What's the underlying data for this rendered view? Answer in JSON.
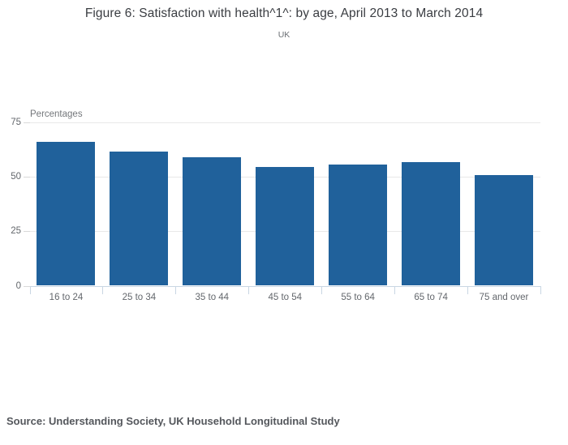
{
  "figure": {
    "title": "Figure 6: Satisfaction with health^1^: by age, April 2013 to March 2014",
    "subtitle": "UK",
    "source": "Source: Understanding Society, UK Household Longitudinal Study"
  },
  "chart_data": {
    "type": "bar",
    "title": "Figure 6: Satisfaction with health^1^: by age, April 2013 to March 2014",
    "subtitle": "UK",
    "categories": [
      "16 to 24",
      "25 to 34",
      "35 to 44",
      "45 to 54",
      "55 to 64",
      "65 to 74",
      "75 and over"
    ],
    "values": [
      66,
      61.5,
      59,
      54.5,
      55.5,
      56.5,
      50.5
    ],
    "xlabel": "",
    "ylabel": "Percentages",
    "ylim": [
      0,
      75
    ],
    "yticks": [
      0,
      25,
      50,
      75
    ],
    "grid": true,
    "legend": "none",
    "source": "Source: Understanding Society, UK Household Longitudinal Study",
    "style": {
      "bar_color": "#20619b",
      "grid_color": "#e8e8e8",
      "y_tick_color": "#d9d9d9",
      "x_axis_color": "#c9d6e3",
      "title_color": "#3a3d42",
      "label_color": "#63676c"
    }
  }
}
